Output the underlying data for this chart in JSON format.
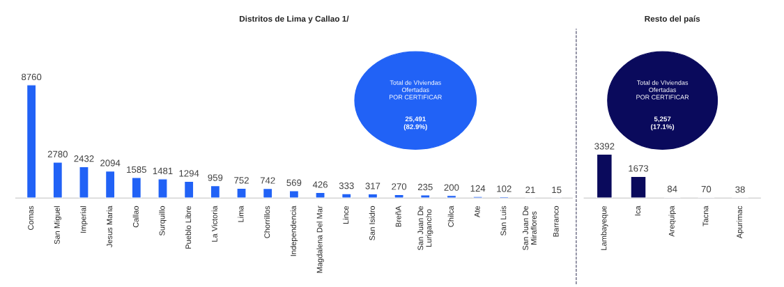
{
  "chart_data": [
    {
      "type": "bar",
      "title": "Distritos de Lima y Callao 1/",
      "categories": [
        "Comas",
        "San Miguel",
        "Imperial",
        "Jesus Maria",
        "Callao",
        "Surquillo",
        "Pueblo Libre",
        "La Victoria",
        "Lima",
        "Chorrillos",
        "Independencia",
        "Magdalena Del Mar",
        "Lince",
        "San Isidro",
        "BreñA",
        "San Juan De\nLurigancho",
        "Chilca",
        "Ate",
        "San Luis",
        "San Juan De\nMiraflores",
        "Barranco"
      ],
      "values": [
        8760,
        2780,
        2432,
        2094,
        1585,
        1481,
        1294,
        959,
        752,
        742,
        569,
        426,
        333,
        317,
        270,
        235,
        200,
        124,
        102,
        21,
        15
      ],
      "color": "#2162f6",
      "data_labels": true,
      "tick_labels": "x",
      "annotations": [
        "Total de VIviendas\nOfertadas\nPOR CERTIFICAR",
        "25,491\n(82.9%)"
      ]
    },
    {
      "type": "bar",
      "title": "Resto del país",
      "categories": [
        "Lambayeque",
        "Ica",
        "Arequipa",
        "Tacna",
        "Apurimac"
      ],
      "values": [
        3392,
        1673,
        84,
        70,
        38
      ],
      "color": "#0a0a5c",
      "data_labels": true,
      "tick_labels": "x",
      "annotations": [
        "Total de VIviendas\nOfertadas\nPOR CERTIFICAR",
        "5,257\n(17.1%)"
      ]
    }
  ]
}
